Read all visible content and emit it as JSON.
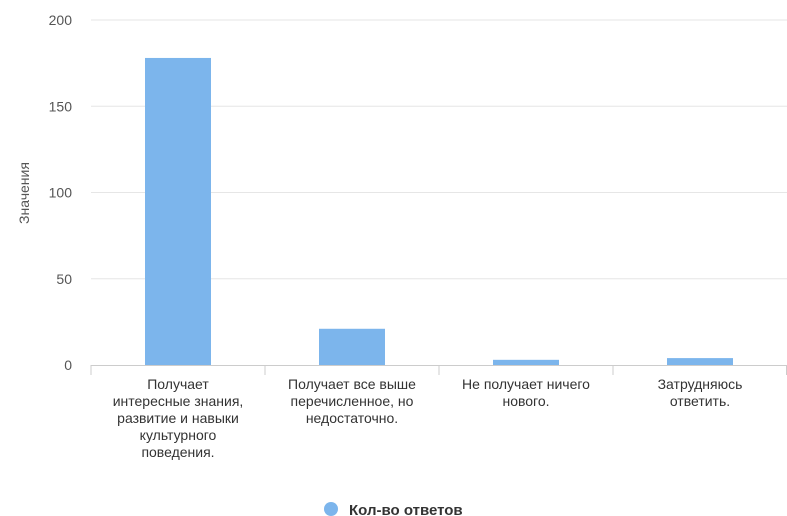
{
  "colors": {
    "series": "#7cb5ec",
    "grid": "#e6e6e6",
    "axis": "#cccccc"
  },
  "chart_data": {
    "type": "bar",
    "categories": [
      "Получает интересные знания, развитие и навыки культурного поведения.",
      "Получает все выше перечисленное, но недостаточно.",
      "Не получает ничего нового.",
      "Затрудняюсь ответить."
    ],
    "category_lines": [
      [
        "Получает",
        "интересные знания,",
        "развитие и навыки",
        "культурного",
        "поведения."
      ],
      [
        "Получает все выше",
        "перечисленное, но",
        "недостаточно."
      ],
      [
        "Не получает ничего",
        "нового."
      ],
      [
        "Затрудняюсь",
        "ответить."
      ]
    ],
    "series": [
      {
        "name": "Кол-во ответов",
        "values": [
          178,
          21,
          3,
          4
        ]
      }
    ],
    "ylabel": "Значения",
    "xlabel": "",
    "title": "",
    "ylim": [
      0,
      200
    ],
    "yticks": [
      0,
      50,
      100,
      150,
      200
    ],
    "grid": true,
    "legend": "bottom-center"
  }
}
